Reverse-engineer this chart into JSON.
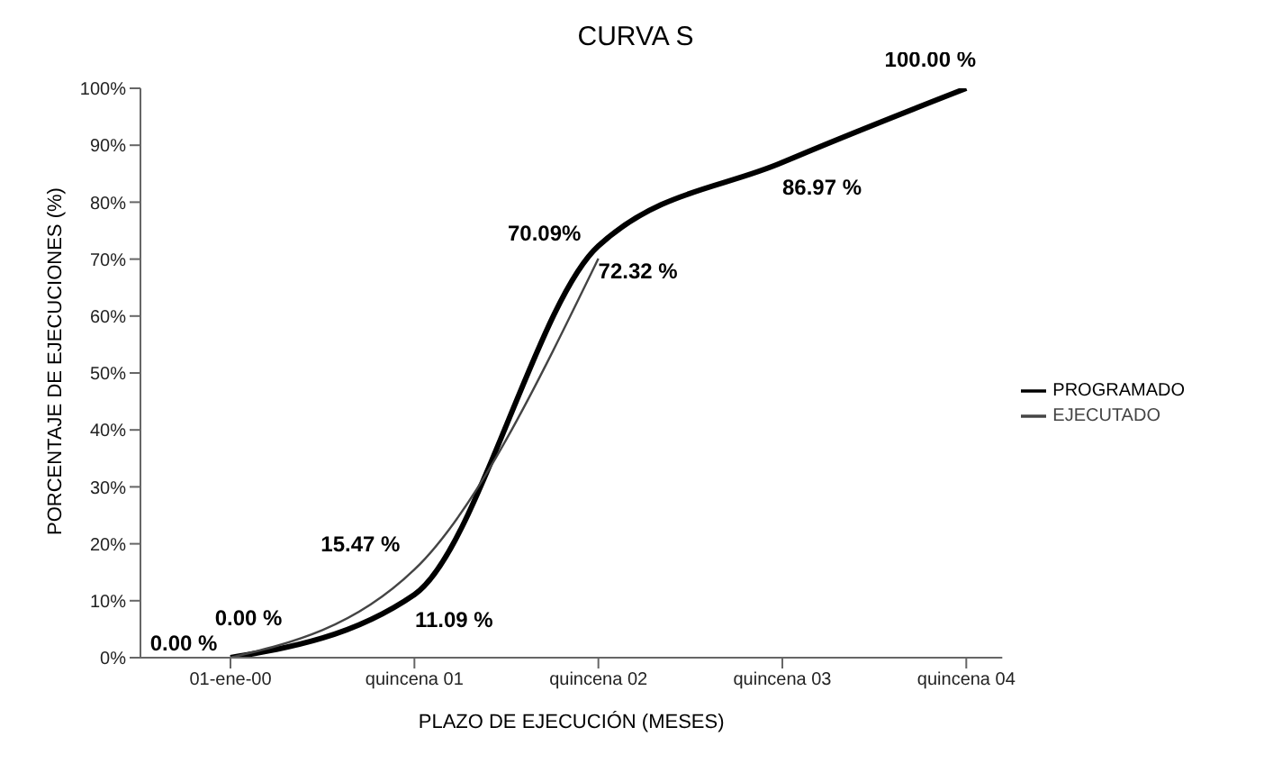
{
  "chart_data": {
    "type": "line",
    "title": "CURVA S",
    "xlabel": "PLAZO DE EJECUCIÓN  (MESES)",
    "ylabel": "PORCENTAJE DE EJECUCIONES (%)",
    "categories": [
      "01-ene-00",
      "quincena 01",
      "quincena 02",
      "quincena 03",
      "quincena 04"
    ],
    "series": [
      {
        "name": "PROGRAMADO",
        "color": "#000000",
        "values": [
          0,
          11.09,
          72.32,
          86.97,
          100
        ],
        "value_labels": [
          "0.00 %",
          "11.09 %",
          "72.32 %",
          "86.97 %",
          "100.00 %"
        ]
      },
      {
        "name": "EJECUTADO",
        "color": "#444444",
        "values": [
          0,
          15.47,
          70.09,
          null,
          null
        ],
        "value_labels": [
          "0.00 %",
          "15.47 %",
          "70.09%",
          null,
          null
        ]
      }
    ],
    "ylim": [
      0,
      100
    ],
    "yticks": [
      {
        "value": 0,
        "label": "0%"
      },
      {
        "value": 10,
        "label": "10%"
      },
      {
        "value": 20,
        "label": "20%"
      },
      {
        "value": 30,
        "label": "30%"
      },
      {
        "value": 40,
        "label": "40%"
      },
      {
        "value": 50,
        "label": "50%"
      },
      {
        "value": 60,
        "label": "60%"
      },
      {
        "value": 70,
        "label": "70%"
      },
      {
        "value": 80,
        "label": "80%"
      },
      {
        "value": 90,
        "label": "90%"
      },
      {
        "value": 100,
        "label": "100%"
      }
    ],
    "grid": false,
    "legend": "right",
    "marker": "none",
    "line_style": "solid"
  }
}
